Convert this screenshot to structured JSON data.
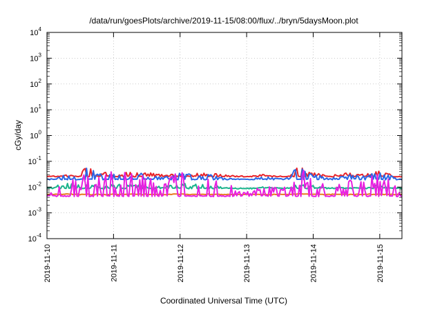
{
  "chart_data": {
    "type": "line",
    "title": "/data/run/goesPlots/archive/2019-11-15/08:00/flux/../bryn/5daysMoon.plot",
    "xlabel": "Coordinated Universal Time (UTC)",
    "ylabel": "cGy/day",
    "yscale": "log",
    "ylim": [
      0.0001,
      10000
    ],
    "xlim": [
      "2019-11-10T00:00",
      "2019-11-15T08:00"
    ],
    "x_ticks": [
      "2019-11-10",
      "2019-11-11",
      "2019-11-12",
      "2019-11-13",
      "2019-11-14",
      "2019-11-15"
    ],
    "y_ticks": [
      {
        "base": "10",
        "exp": "-4"
      },
      {
        "base": "10",
        "exp": "-3"
      },
      {
        "base": "10",
        "exp": "-2"
      },
      {
        "base": "10",
        "exp": "-1"
      },
      {
        "base": "10",
        "exp": "0"
      },
      {
        "base": "10",
        "exp": "1"
      },
      {
        "base": "10",
        "exp": "2"
      },
      {
        "base": "10",
        "exp": "3"
      },
      {
        "base": "10",
        "exp": "4"
      }
    ],
    "grid": true,
    "legend": "none",
    "series": [
      {
        "color": "#e8242a",
        "base": 0.026,
        "x": [
          "2019-11-10T00:00",
          "2019-11-10T06:00",
          "2019-11-10T12:00",
          "2019-11-10T14:00",
          "2019-11-10T18:00",
          "2019-11-11T00:00",
          "2019-11-11T06:00",
          "2019-11-11T12:00",
          "2019-11-11T18:00",
          "2019-11-12T00:00",
          "2019-11-12T06:00",
          "2019-11-12T12:00",
          "2019-11-12T18:00",
          "2019-11-13T00:00",
          "2019-11-13T06:00",
          "2019-11-13T12:00",
          "2019-11-13T16:00",
          "2019-11-13T18:00",
          "2019-11-14T00:00",
          "2019-11-14T06:00",
          "2019-11-14T12:00",
          "2019-11-14T18:00",
          "2019-11-15T00:00",
          "2019-11-15T06:00",
          "2019-11-15T08:00"
        ],
        "y": [
          0.026,
          0.03,
          0.027,
          0.06,
          0.04,
          0.032,
          0.038,
          0.035,
          0.03,
          0.036,
          0.032,
          0.034,
          0.028,
          0.027,
          0.03,
          0.026,
          0.029,
          0.07,
          0.035,
          0.028,
          0.033,
          0.03,
          0.038,
          0.028,
          0.025
        ]
      },
      {
        "color": "#2a66e6",
        "base": 0.02,
        "x": [
          "2019-11-10T00:00",
          "2019-11-10T06:00",
          "2019-11-10T12:00",
          "2019-11-10T14:00",
          "2019-11-10T18:00",
          "2019-11-11T00:00",
          "2019-11-11T06:00",
          "2019-11-11T12:00",
          "2019-11-11T18:00",
          "2019-11-12T00:00",
          "2019-11-12T06:00",
          "2019-11-12T12:00",
          "2019-11-12T18:00",
          "2019-11-13T00:00",
          "2019-11-13T06:00",
          "2019-11-13T12:00",
          "2019-11-13T16:00",
          "2019-11-13T18:00",
          "2019-11-14T00:00",
          "2019-11-14T06:00",
          "2019-11-14T12:00",
          "2019-11-14T18:00",
          "2019-11-15T00:00",
          "2019-11-15T06:00",
          "2019-11-15T08:00"
        ],
        "y": [
          0.02,
          0.028,
          0.022,
          0.06,
          0.035,
          0.03,
          0.034,
          0.03,
          0.025,
          0.032,
          0.028,
          0.03,
          0.022,
          0.02,
          0.025,
          0.021,
          0.024,
          0.065,
          0.03,
          0.022,
          0.028,
          0.025,
          0.035,
          0.022,
          0.019
        ]
      },
      {
        "color": "#19b48c",
        "base": 0.009,
        "x": [
          "2019-11-10T00:00",
          "2019-11-10T06:00",
          "2019-11-10T12:00",
          "2019-11-10T14:00",
          "2019-11-10T18:00",
          "2019-11-11T00:00",
          "2019-11-11T06:00",
          "2019-11-11T12:00",
          "2019-11-11T18:00",
          "2019-11-12T00:00",
          "2019-11-12T06:00",
          "2019-11-12T12:00",
          "2019-11-12T18:00",
          "2019-11-13T00:00",
          "2019-11-13T06:00",
          "2019-11-13T12:00",
          "2019-11-13T16:00",
          "2019-11-13T18:00",
          "2019-11-14T00:00",
          "2019-11-14T06:00",
          "2019-11-14T12:00",
          "2019-11-14T18:00",
          "2019-11-15T00:00",
          "2019-11-15T06:00",
          "2019-11-15T08:00"
        ],
        "y": [
          0.009,
          0.013,
          0.012,
          0.015,
          0.011,
          0.012,
          0.014,
          0.011,
          0.01,
          0.013,
          0.012,
          0.011,
          0.009,
          0.008,
          0.01,
          0.009,
          0.009,
          0.012,
          0.011,
          0.009,
          0.01,
          0.009,
          0.012,
          0.009,
          0.009
        ]
      },
      {
        "color": "#e87a20",
        "base": 0.0052,
        "x": [
          "2019-11-10T00:00",
          "2019-11-10T06:00",
          "2019-11-10T12:00",
          "2019-11-10T14:00",
          "2019-11-10T18:00",
          "2019-11-11T00:00",
          "2019-11-11T06:00",
          "2019-11-11T12:00",
          "2019-11-11T18:00",
          "2019-11-12T00:00",
          "2019-11-12T06:00",
          "2019-11-12T12:00",
          "2019-11-12T18:00",
          "2019-11-13T00:00",
          "2019-11-13T06:00",
          "2019-11-13T12:00",
          "2019-11-13T16:00",
          "2019-11-13T18:00",
          "2019-11-14T00:00",
          "2019-11-14T06:00",
          "2019-11-14T12:00",
          "2019-11-14T18:00",
          "2019-11-15T00:00",
          "2019-11-15T06:00",
          "2019-11-15T08:00"
        ],
        "y": [
          0.0052,
          0.0055,
          0.0052,
          0.0054,
          0.0053,
          0.0052,
          0.0053,
          0.0052,
          0.0052,
          0.0054,
          0.0052,
          0.0053,
          0.0052,
          0.0052,
          0.0053,
          0.0052,
          0.0052,
          0.0055,
          0.0053,
          0.0052,
          0.0053,
          0.0052,
          0.0053,
          0.0052,
          0.0052
        ]
      },
      {
        "color": "#e81fe0",
        "base": 0.0045,
        "x": [
          "2019-11-10T00:00",
          "2019-11-10T06:00",
          "2019-11-10T12:00",
          "2019-11-10T14:00",
          "2019-11-10T18:00",
          "2019-11-11T00:00",
          "2019-11-11T06:00",
          "2019-11-11T12:00",
          "2019-11-11T18:00",
          "2019-11-12T00:00",
          "2019-11-12T06:00",
          "2019-11-12T12:00",
          "2019-11-12T18:00",
          "2019-11-13T00:00",
          "2019-11-13T06:00",
          "2019-11-13T12:00",
          "2019-11-13T16:00",
          "2019-11-13T18:00",
          "2019-11-14T00:00",
          "2019-11-14T06:00",
          "2019-11-14T12:00",
          "2019-11-14T18:00",
          "2019-11-15T00:00",
          "2019-11-15T06:00",
          "2019-11-15T08:00"
        ],
        "y": [
          0.0045,
          0.02,
          0.012,
          0.04,
          0.02,
          0.025,
          0.03,
          0.02,
          0.012,
          0.028,
          0.018,
          0.025,
          0.01,
          0.006,
          0.012,
          0.008,
          0.009,
          0.035,
          0.02,
          0.01,
          0.015,
          0.012,
          0.03,
          0.01,
          0.0045
        ]
      }
    ]
  }
}
